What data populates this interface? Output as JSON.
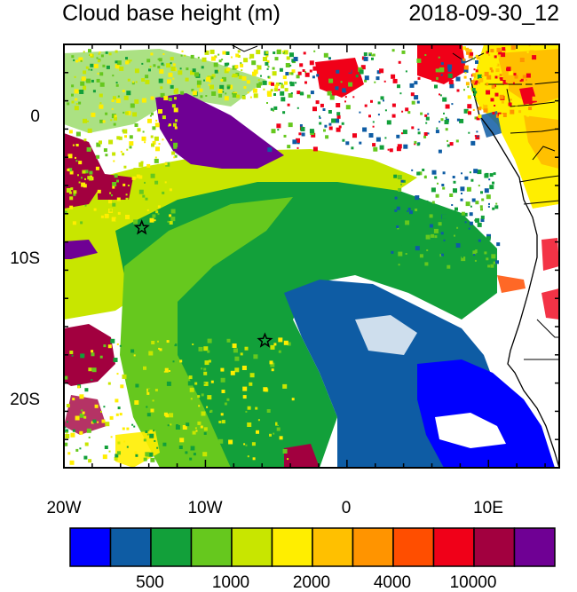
{
  "title": "Cloud base height (m)",
  "timestamp": "2018-09-30_12",
  "map": {
    "x_ticks": [
      "20W",
      "10W",
      "0",
      "10E"
    ],
    "y_ticks": [
      "0",
      "10S",
      "20S"
    ],
    "extent": {
      "lon": [
        -20,
        15
      ],
      "lat": [
        -25,
        5
      ]
    },
    "markers": [
      {
        "label": "star",
        "lon": -14.5,
        "lat": -8
      },
      {
        "label": "star",
        "lon": -5.8,
        "lat": -16
      }
    ]
  },
  "legend": {
    "colors": [
      "#0000ff",
      "#0e5ca4",
      "#12a03a",
      "#66c81e",
      "#c8e600",
      "#ffee00",
      "#ffc000",
      "#ff9400",
      "#ff4e00",
      "#f00018",
      "#a2003f",
      "#6f0094"
    ],
    "labels": [
      "500",
      "1000",
      "2000",
      "4000",
      "10000"
    ]
  },
  "icons": {
    "marker": "star-icon"
  }
}
